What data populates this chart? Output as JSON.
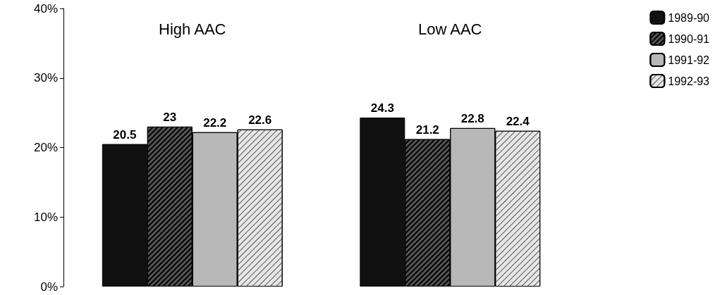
{
  "chart_data": {
    "type": "bar",
    "categories": [
      "High AAC",
      "Low AAC"
    ],
    "series": [
      {
        "name": "1989-90",
        "color": "#111111",
        "values": [
          20.5,
          24.3
        ]
      },
      {
        "name": "1990-91",
        "color": "#555555",
        "values": [
          23,
          21.2
        ]
      },
      {
        "name": "1991-92",
        "color": "#b8b8b8",
        "values": [
          22.2,
          22.8
        ]
      },
      {
        "name": "1992-93",
        "color": "#e6e6e6",
        "values": [
          22.6,
          22.4
        ]
      }
    ],
    "ylim": [
      0,
      40
    ],
    "yticks": [
      {
        "value": 0,
        "label": "0%"
      },
      {
        "value": 10,
        "label": "10%"
      },
      {
        "value": 20,
        "label": "20%"
      },
      {
        "value": 30,
        "label": "30%"
      },
      {
        "value": 40,
        "label": "40%"
      }
    ],
    "data_labels": true,
    "grid": false,
    "legend": "top right"
  }
}
